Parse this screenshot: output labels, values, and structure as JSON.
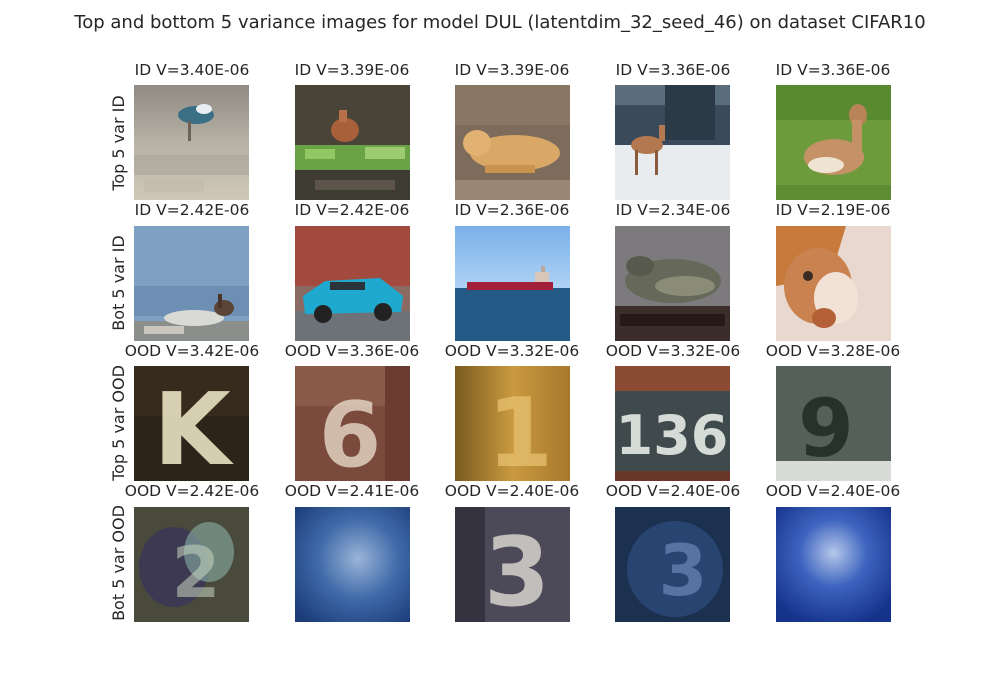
{
  "figure": {
    "title": "Top and bottom 5 variance images for model DUL (latentdim_32_seed_46) on dataset CIFAR10"
  },
  "rows": [
    {
      "label": "Top 5 var ID",
      "cells": [
        {
          "title": "ID V=3.40E-06",
          "image": "bird-on-sand"
        },
        {
          "title": "ID V=3.39E-06",
          "image": "deer-by-plants"
        },
        {
          "title": "ID V=3.39E-06",
          "image": "lying-dog"
        },
        {
          "title": "ID V=3.36E-06",
          "image": "deer-on-snow"
        },
        {
          "title": "ID V=3.36E-06",
          "image": "deer-on-grass"
        }
      ]
    },
    {
      "label": "Bot 5 var ID",
      "cells": [
        {
          "title": "ID V=2.42E-06",
          "image": "deer-by-water"
        },
        {
          "title": "ID V=2.42E-06",
          "image": "blue-convertible-car"
        },
        {
          "title": "ID V=2.36E-06",
          "image": "cargo-ship-at-sea"
        },
        {
          "title": "ID V=2.34E-06",
          "image": "frog-on-rock"
        },
        {
          "title": "ID V=2.19E-06",
          "image": "cat-closeup"
        }
      ]
    },
    {
      "label": "Top 5 var OOD",
      "cells": [
        {
          "title": "OOD V=3.42E-06",
          "image": "house-number-digit",
          "digit": "K"
        },
        {
          "title": "OOD V=3.36E-06",
          "image": "house-number-digit",
          "digit": "6"
        },
        {
          "title": "OOD V=3.32E-06",
          "image": "house-number-digit",
          "digit": "1"
        },
        {
          "title": "OOD V=3.32E-06",
          "image": "house-number-digit",
          "digit": "136"
        },
        {
          "title": "OOD V=3.28E-06",
          "image": "house-number-digit",
          "digit": "9"
        }
      ]
    },
    {
      "label": "Bot 5 var OOD",
      "cells": [
        {
          "title": "OOD V=2.42E-06",
          "image": "house-number-digit",
          "digit": "2"
        },
        {
          "title": "OOD V=2.41E-06",
          "image": "blurry-blue-number-plate"
        },
        {
          "title": "OOD V=2.40E-06",
          "image": "house-number-digit",
          "digit": "3"
        },
        {
          "title": "OOD V=2.40E-06",
          "image": "house-number-digit",
          "digit": "3"
        },
        {
          "title": "OOD V=2.40E-06",
          "image": "blurry-blue-number-plate"
        }
      ]
    }
  ]
}
